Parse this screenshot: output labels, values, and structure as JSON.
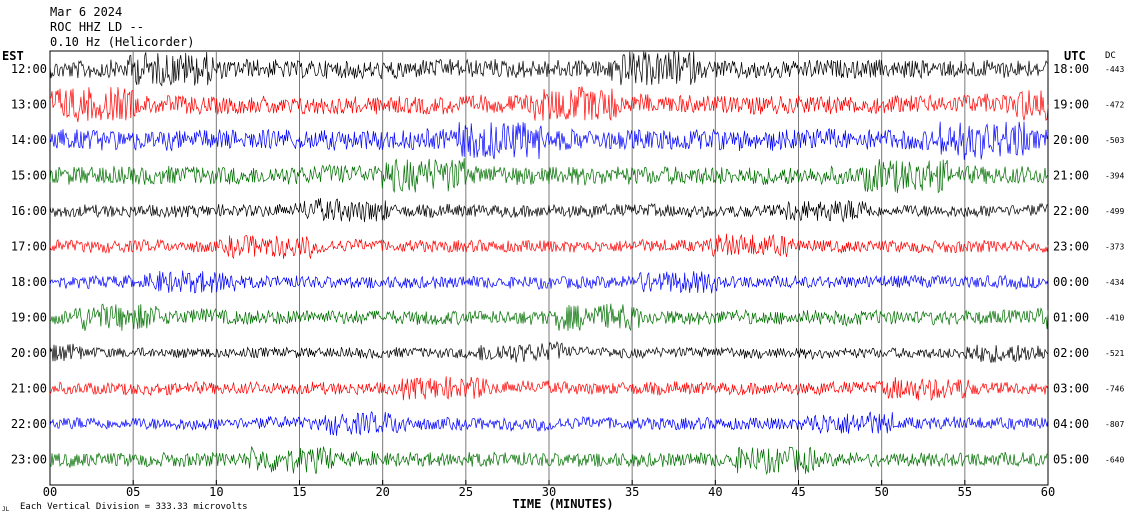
{
  "header": {
    "date": "Mar 6 2024",
    "station": "ROC HHZ LD --",
    "filter": "0.10 Hz (Helicorder)"
  },
  "left_tz": "EST",
  "right_tz": "UTC",
  "dc_header": "DC",
  "footer_note": "Each Vertical Division = 333.33 microvolts",
  "footer_mark": "JL",
  "colors": {
    "black": "#000000",
    "red": "#ff0000",
    "blue": "#0000ff",
    "green": "#007000"
  },
  "chart_data": {
    "type": "line",
    "xlabel": "TIME (MINUTES)",
    "xlim": [
      0,
      60
    ],
    "x_ticks": [
      "00",
      "05",
      "10",
      "15",
      "20",
      "25",
      "30",
      "35",
      "40",
      "45",
      "50",
      "55",
      "60"
    ],
    "rows": [
      {
        "left": "12:00",
        "right": "18:00",
        "dc": "-443",
        "color": "#000000",
        "amp": 9
      },
      {
        "left": "13:00",
        "right": "19:00",
        "dc": "-472",
        "color": "#ff0000",
        "amp": 9
      },
      {
        "left": "14:00",
        "right": "20:00",
        "dc": "-503",
        "color": "#0000ff",
        "amp": 10
      },
      {
        "left": "15:00",
        "right": "21:00",
        "dc": "-394",
        "color": "#007000",
        "amp": 9
      },
      {
        "left": "16:00",
        "right": "22:00",
        "dc": "-499",
        "color": "#000000",
        "amp": 6
      },
      {
        "left": "17:00",
        "right": "23:00",
        "dc": "-373",
        "color": "#ff0000",
        "amp": 6
      },
      {
        "left": "18:00",
        "right": "00:00",
        "dc": "-434",
        "color": "#0000ff",
        "amp": 6
      },
      {
        "left": "19:00",
        "right": "01:00",
        "dc": "-410",
        "color": "#007000",
        "amp": 7
      },
      {
        "left": "20:00",
        "right": "02:00",
        "dc": "-521",
        "color": "#000000",
        "amp": 5
      },
      {
        "left": "21:00",
        "right": "03:00",
        "dc": "-746",
        "color": "#ff0000",
        "amp": 6
      },
      {
        "left": "22:00",
        "right": "04:00",
        "dc": "-807",
        "color": "#0000ff",
        "amp": 6
      },
      {
        "left": "23:00",
        "right": "05:00",
        "dc": "-640",
        "color": "#007000",
        "amp": 7
      }
    ]
  }
}
